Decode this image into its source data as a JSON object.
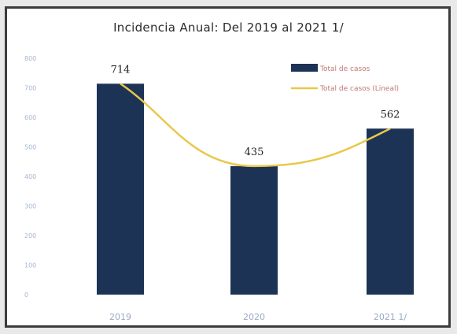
{
  "chart_data": {
    "type": "bar",
    "title": "Incidencia Anual: Del 2019 al 2021 1/",
    "categories": [
      "2019",
      "2020",
      "2021 1/"
    ],
    "series": [
      {
        "name": "Total de casos",
        "kind": "bar",
        "values": [
          714,
          435,
          562
        ],
        "color": "#1d3356"
      },
      {
        "name": "Total de casos (Lineal)",
        "kind": "line",
        "values": [
          714,
          435,
          562
        ],
        "color": "#e8c84a"
      }
    ],
    "data_labels": [
      "714",
      "435",
      "562"
    ],
    "ylim": [
      0,
      800
    ],
    "yticks": [
      "0",
      "100",
      "200",
      "300",
      "400",
      "500",
      "600",
      "700",
      "800"
    ],
    "xlabel": "",
    "ylabel": "",
    "grid": false,
    "legend_position": "top-right"
  }
}
